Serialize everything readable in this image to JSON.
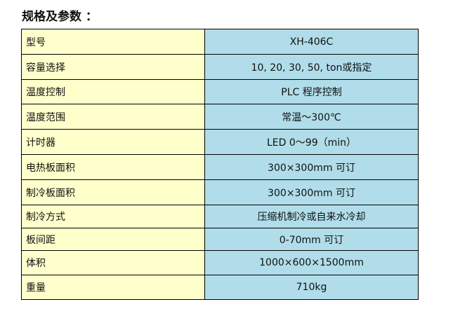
{
  "title": "规格及参数 ：",
  "rows": [
    {
      "label": "型号",
      "value": "XH-406C"
    },
    {
      "label": "容量选择",
      "value": "10, 20, 30, 50, ton或指定"
    },
    {
      "label": "温度控制",
      "value": "PLC 程序控制"
    },
    {
      "label": "温度范围",
      "value": "常温～300℃"
    },
    {
      "label": "计时器",
      "value": "LED 0～99（min）"
    },
    {
      "label": "电热板面积",
      "value": "300×300mm 可订"
    },
    {
      "label": "制冷板面积",
      "value": "300×300mm 可订"
    },
    {
      "label": "制冷方式",
      "value": "压缩机制冷或自来水冷却"
    },
    {
      "label": "板间距",
      "value": "0-70mm 可订"
    },
    {
      "label": "体积",
      "value": "1000×600×1500mm"
    },
    {
      "label": "重量",
      "value": "710kg"
    }
  ]
}
